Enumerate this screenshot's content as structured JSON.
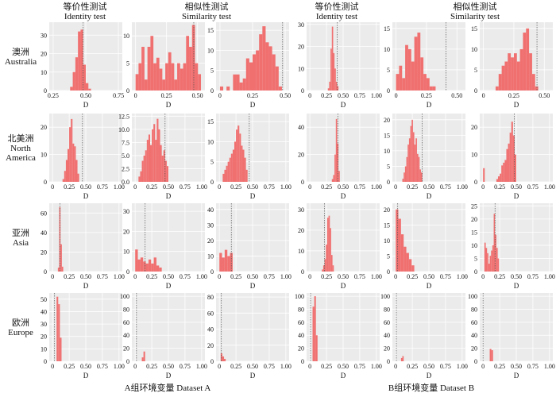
{
  "header": {
    "groups": [
      {
        "title_cn": "等价性测试",
        "title_en": "Identity test"
      },
      {
        "title_cn": "相似性测试",
        "title_en": "Similarity test"
      },
      {
        "title_cn": "等价性测试",
        "title_en": "Identity test"
      },
      {
        "title_cn": "相似性测试",
        "title_en": "Similarity test"
      }
    ]
  },
  "rows": [
    {
      "label_cn": "澳洲",
      "label_en": [
        "Australia"
      ]
    },
    {
      "label_cn": "北美洲",
      "label_en": [
        "North",
        "America"
      ]
    },
    {
      "label_cn": "亚洲",
      "label_en": [
        "Asia"
      ]
    },
    {
      "label_cn": "欧洲",
      "label_en": [
        "Europe"
      ]
    }
  ],
  "footer": {
    "dataset_a": "A组环境变量 Dataset A",
    "dataset_b": "B组环境变量 Dataset B"
  },
  "colors": {
    "bar": "#f07070",
    "panel_bg": "#ebebeb",
    "grid": "#ffffff",
    "line": "#555555"
  },
  "chart_data": [
    {
      "id": "r0c0",
      "type": "bar",
      "xlabel": "D",
      "xlim": [
        0.22,
        0.78
      ],
      "xticks": [
        0.25,
        0.5,
        0.75
      ],
      "ylim": [
        0,
        37
      ],
      "yticks": [
        0,
        10,
        20,
        30
      ],
      "bin_start": 0.38,
      "bin_width": 0.02,
      "values": [
        2,
        10,
        18,
        32,
        33,
        14,
        4,
        1
      ],
      "observed": 0.48
    },
    {
      "id": "r0c1",
      "type": "bar",
      "xlabel": "D",
      "xlim": [
        -0.03,
        0.56
      ],
      "xticks": [
        0,
        0.25,
        0.5
      ],
      "ylim": [
        0,
        12.5
      ],
      "yticks": [
        0,
        5,
        10
      ],
      "bin_start": 0.0,
      "bin_width": 0.024,
      "values": [
        3,
        5,
        8,
        2,
        8,
        10,
        5,
        6,
        4,
        2,
        5,
        7,
        5,
        2,
        5,
        4,
        5,
        10,
        8,
        12,
        5,
        3
      ],
      "observed": 0.47
    },
    {
      "id": "r0c2",
      "type": "bar",
      "xlabel": "D",
      "xlim": [
        -0.03,
        0.53
      ],
      "xticks": [
        0,
        0.25,
        0.5
      ],
      "ylim": [
        0,
        17
      ],
      "yticks": [
        0,
        5,
        10,
        15
      ],
      "bin_start": 0.0,
      "bin_width": 0.025,
      "values": [
        1,
        0,
        1,
        0,
        4,
        4,
        2,
        3,
        8,
        7,
        9,
        10,
        14,
        16,
        12,
        11,
        9,
        6,
        1,
        0
      ],
      "observed": 0.48
    },
    {
      "id": "r0c3",
      "type": "bar",
      "xlabel": "D",
      "xlim": [
        -0.05,
        1.05
      ],
      "xticks": [
        0,
        0.25,
        0.5,
        0.75,
        1
      ],
      "ylim": [
        0,
        31
      ],
      "yticks": [
        0,
        10,
        20,
        30
      ],
      "bin_start": 0.27,
      "bin_width": 0.02,
      "values": [
        1,
        4,
        19,
        29,
        17,
        10,
        4,
        2
      ],
      "observed": 0.41
    },
    {
      "id": "r0c4",
      "type": "bar",
      "xlabel": "D",
      "xlim": [
        -0.03,
        0.57
      ],
      "xticks": [
        0,
        0.25,
        0.5
      ],
      "ylim": [
        0,
        16.5
      ],
      "yticks": [
        0,
        5,
        10,
        15
      ],
      "bin_start": 0.0,
      "bin_width": 0.025,
      "values": [
        4,
        6,
        3,
        11,
        10,
        7,
        13,
        14,
        8,
        4,
        3,
        1,
        1,
        0,
        0,
        0,
        0
      ],
      "observed": 0.41
    },
    {
      "id": "r0c5",
      "type": "bar",
      "xlabel": "D",
      "xlim": [
        -0.03,
        0.57
      ],
      "xticks": [
        0,
        0.25,
        0.5
      ],
      "ylim": [
        0,
        16.5
      ],
      "yticks": [
        0,
        5,
        10,
        15
      ],
      "bin_start": 0.1,
      "bin_width": 0.025,
      "values": [
        1,
        4,
        6,
        7,
        9,
        8,
        9,
        7,
        10,
        14,
        15,
        9,
        4,
        1
      ],
      "observed": 0.44
    },
    {
      "id": "r1c0",
      "type": "bar",
      "xlabel": "D",
      "xlim": [
        -0.05,
        1.05
      ],
      "xticks": [
        0,
        0.25,
        0.5,
        0.75,
        1
      ],
      "ylim": [
        0,
        25
      ],
      "yticks": [
        0,
        10,
        20
      ],
      "bin_start": 0.15,
      "bin_width": 0.025,
      "values": [
        1,
        4,
        8,
        12,
        20,
        23,
        14,
        13,
        8,
        3
      ],
      "observed": 0.45
    },
    {
      "id": "r1c1",
      "type": "bar",
      "xlabel": "D",
      "xlim": [
        -0.05,
        1.05
      ],
      "xticks": [
        0,
        0.25,
        0.5,
        0.75,
        1
      ],
      "ylim": [
        0,
        13
      ],
      "yticks": [
        0,
        2.5,
        5,
        7.5,
        10,
        12.5
      ],
      "bin_start": 0.05,
      "bin_width": 0.025,
      "values": [
        1,
        2,
        4,
        5,
        6,
        8,
        9,
        7,
        10,
        11,
        8,
        12,
        10,
        7,
        5,
        6,
        4,
        3
      ],
      "observed": 0.45
    },
    {
      "id": "r1c2",
      "type": "bar",
      "xlabel": "D",
      "xlim": [
        -0.05,
        1.05
      ],
      "xticks": [
        0,
        0.25,
        0.5,
        0.75,
        1
      ],
      "ylim": [
        0,
        17
      ],
      "yticks": [
        0,
        5,
        10,
        15
      ],
      "bin_start": 0.05,
      "bin_width": 0.025,
      "values": [
        2,
        3,
        4,
        5,
        6,
        7,
        8,
        10,
        13,
        14,
        12,
        9,
        8,
        6,
        3
      ],
      "observed": 0.45
    },
    {
      "id": "r1c3",
      "type": "bar",
      "xlabel": "D",
      "xlim": [
        -0.05,
        1.05
      ],
      "xticks": [
        0,
        0.25,
        0.5,
        0.75,
        1
      ],
      "ylim": [
        0,
        50
      ],
      "yticks": [
        0,
        20,
        40
      ],
      "bin_start": 0.33,
      "bin_width": 0.02,
      "values": [
        2,
        5,
        20,
        46,
        28,
        8
      ],
      "observed": 0.42
    },
    {
      "id": "r1c4",
      "type": "bar",
      "xlabel": "D",
      "xlim": [
        -0.05,
        1.05
      ],
      "xticks": [
        0,
        0.25,
        0.5,
        0.75,
        1
      ],
      "ylim": [
        0,
        22
      ],
      "yticks": [
        0,
        5,
        10,
        15,
        20
      ],
      "bin_start": 0.1,
      "bin_width": 0.02,
      "values": [
        1,
        3,
        5,
        8,
        12,
        14,
        18,
        20,
        16,
        12,
        14,
        9,
        8,
        4,
        3
      ],
      "observed": 0.4
    },
    {
      "id": "r1c5",
      "type": "bar",
      "xlabel": "D",
      "xlim": [
        -0.05,
        1.05
      ],
      "xticks": [
        0,
        0.25,
        0.5,
        0.75,
        1
      ],
      "ylim": [
        0,
        25
      ],
      "yticks": [
        0,
        10,
        20
      ],
      "bin_start": 0.0,
      "bin_width": 0.025,
      "values": [
        5,
        0,
        0,
        0,
        0,
        0,
        0,
        0,
        1,
        2,
        3,
        6,
        7,
        8,
        12,
        14,
        18,
        22,
        17,
        10
      ],
      "observed": 0.47
    },
    {
      "id": "r2c0",
      "type": "bar",
      "xlabel": "D",
      "xlim": [
        -0.05,
        1.05
      ],
      "xticks": [
        0,
        0.25,
        0.5,
        0.75,
        1
      ],
      "ylim": [
        0,
        70
      ],
      "yticks": [
        0,
        20,
        40,
        60
      ],
      "bin_start": 0.08,
      "bin_width": 0.02,
      "values": [
        4,
        66,
        28,
        5
      ],
      "observed": 0.11
    },
    {
      "id": "r2c1",
      "type": "bar",
      "xlabel": "D",
      "xlim": [
        -0.05,
        1.05
      ],
      "xticks": [
        0,
        0.25,
        0.5,
        0.75,
        1
      ],
      "ylim": [
        0,
        34
      ],
      "yticks": [
        0,
        10,
        20,
        30
      ],
      "bin_start": 0.0,
      "bin_width": 0.04,
      "values": [
        11,
        6,
        7,
        5,
        4,
        6,
        4,
        7,
        3,
        2
      ],
      "observed": 0.15
    },
    {
      "id": "r2c2",
      "type": "bar",
      "xlabel": "D",
      "xlim": [
        -0.05,
        1.05
      ],
      "xticks": [
        0,
        0.25,
        0.5,
        0.75,
        1
      ],
      "ylim": [
        0,
        44
      ],
      "yticks": [
        0,
        10,
        20,
        30,
        40
      ],
      "bin_start": 0.0,
      "bin_width": 0.04,
      "values": [
        12,
        9,
        14,
        10,
        12
      ],
      "observed": 0.18
    },
    {
      "id": "r2c3",
      "type": "bar",
      "xlabel": "D",
      "xlim": [
        -0.05,
        1.05
      ],
      "xticks": [
        0,
        0.25,
        0.5,
        0.75,
        1
      ],
      "ylim": [
        0,
        33
      ],
      "yticks": [
        0,
        10,
        20,
        30
      ],
      "bin_start": 0.18,
      "bin_width": 0.02,
      "values": [
        1,
        3,
        6,
        13,
        26,
        27,
        21,
        8,
        3
      ],
      "observed": 0.22
    },
    {
      "id": "r2c4",
      "type": "bar",
      "xlabel": "D",
      "xlim": [
        -0.05,
        1.05
      ],
      "xticks": [
        0,
        0.25,
        0.5,
        0.75,
        1
      ],
      "ylim": [
        0,
        22
      ],
      "yticks": [
        0,
        5,
        10,
        15,
        20
      ],
      "bin_start": 0.0,
      "bin_width": 0.04,
      "values": [
        20,
        17,
        12,
        8,
        6,
        4,
        2
      ],
      "observed": 0.03
    },
    {
      "id": "r2c5",
      "type": "bar",
      "xlabel": "D",
      "xlim": [
        -0.05,
        1.05
      ],
      "xticks": [
        0,
        0.25,
        0.5,
        0.75,
        1
      ],
      "ylim": [
        0,
        26
      ],
      "yticks": [
        0,
        5,
        10,
        15,
        20,
        25
      ],
      "bin_start": 0.02,
      "bin_width": 0.02,
      "values": [
        11,
        9,
        7,
        3,
        6,
        8,
        10,
        22,
        14,
        9,
        5
      ],
      "observed": 0.18
    },
    {
      "id": "r3c0",
      "type": "bar",
      "xlabel": "D",
      "xlim": [
        -0.05,
        1.05
      ],
      "xticks": [
        0,
        0.25,
        0.5,
        0.75,
        1
      ],
      "ylim": [
        0,
        55
      ],
      "yticks": [
        0,
        10,
        20,
        30,
        40,
        50
      ],
      "bin_start": 0.06,
      "bin_width": 0.025,
      "values": [
        52,
        46,
        19
      ],
      "observed": 0.03
    },
    {
      "id": "r3c1",
      "type": "bar",
      "xlabel": "D",
      "xlim": [
        -0.05,
        1.05
      ],
      "xticks": [
        0,
        0.25,
        0.5,
        0.75,
        1
      ],
      "ylim": [
        0,
        105
      ],
      "yticks": [
        0,
        20,
        40,
        60,
        80,
        100
      ],
      "bin_start": 0.1,
      "bin_width": 0.025,
      "values": [
        6,
        15
      ],
      "observed": 0.02
    },
    {
      "id": "r3c2",
      "type": "bar",
      "xlabel": "D",
      "xlim": [
        -0.05,
        1.05
      ],
      "xticks": [
        0,
        0.25,
        0.5,
        0.75,
        1
      ],
      "ylim": [
        0,
        85
      ],
      "yticks": [
        0,
        20,
        40,
        60,
        80
      ],
      "bin_start": 0.02,
      "bin_width": 0.025,
      "values": [
        10,
        6,
        3
      ],
      "observed": 0.03
    },
    {
      "id": "r3c3",
      "type": "bar",
      "xlabel": "D",
      "xlim": [
        -0.05,
        1.05
      ],
      "xticks": [
        0,
        0.25,
        0.5,
        0.75,
        1
      ],
      "ylim": [
        0,
        105
      ],
      "yticks": [
        0,
        20,
        40,
        60,
        80,
        100
      ],
      "bin_start": 0.04,
      "bin_width": 0.025,
      "values": [
        84,
        100,
        40
      ],
      "observed": 0.01
    },
    {
      "id": "r3c4",
      "type": "bar",
      "xlabel": "D",
      "xlim": [
        -0.05,
        1.05
      ],
      "xticks": [
        0,
        0.25,
        0.5,
        0.75,
        1
      ],
      "ylim": [
        0,
        105
      ],
      "yticks": [
        0,
        20,
        40,
        60,
        80,
        100
      ],
      "bin_start": 0.08,
      "bin_width": 0.02,
      "values": [
        5,
        8
      ],
      "observed": 0.01
    },
    {
      "id": "r3c5",
      "type": "bar",
      "xlabel": "D",
      "xlim": [
        -0.05,
        1.05
      ],
      "xticks": [
        0,
        0.25,
        0.5,
        0.75,
        1
      ],
      "ylim": [
        0,
        105
      ],
      "yticks": [
        0,
        20,
        40,
        60,
        80,
        100
      ],
      "bin_start": 0.1,
      "bin_width": 0.025,
      "values": [
        19,
        17
      ],
      "observed": 0.0
    }
  ]
}
